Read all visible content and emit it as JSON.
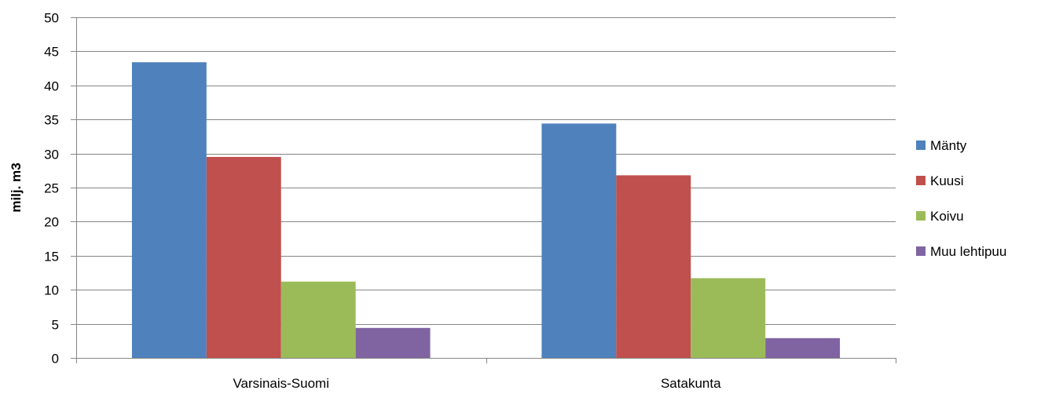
{
  "chart_data": {
    "type": "bar",
    "title": "",
    "xlabel": "",
    "ylabel": "milj. m3",
    "ylim": [
      0,
      50
    ],
    "ytick_step": 5,
    "yticks": [
      "0",
      "5",
      "10",
      "15",
      "20",
      "25",
      "30",
      "35",
      "40",
      "45",
      "50"
    ],
    "grid": true,
    "legend_position": "right",
    "categories": [
      "Varsinais-Suomi",
      "Satakunta"
    ],
    "series": [
      {
        "name": "Mänty",
        "color": "#4F81BD",
        "values": [
          43.4,
          34.4
        ]
      },
      {
        "name": "Kuusi",
        "color": "#C0504D",
        "values": [
          29.5,
          26.8
        ]
      },
      {
        "name": "Koivu",
        "color": "#9BBB59",
        "values": [
          11.2,
          11.7
        ]
      },
      {
        "name": "Muu lehtipuu",
        "color": "#8064A2",
        "values": [
          4.4,
          2.9
        ]
      }
    ]
  }
}
